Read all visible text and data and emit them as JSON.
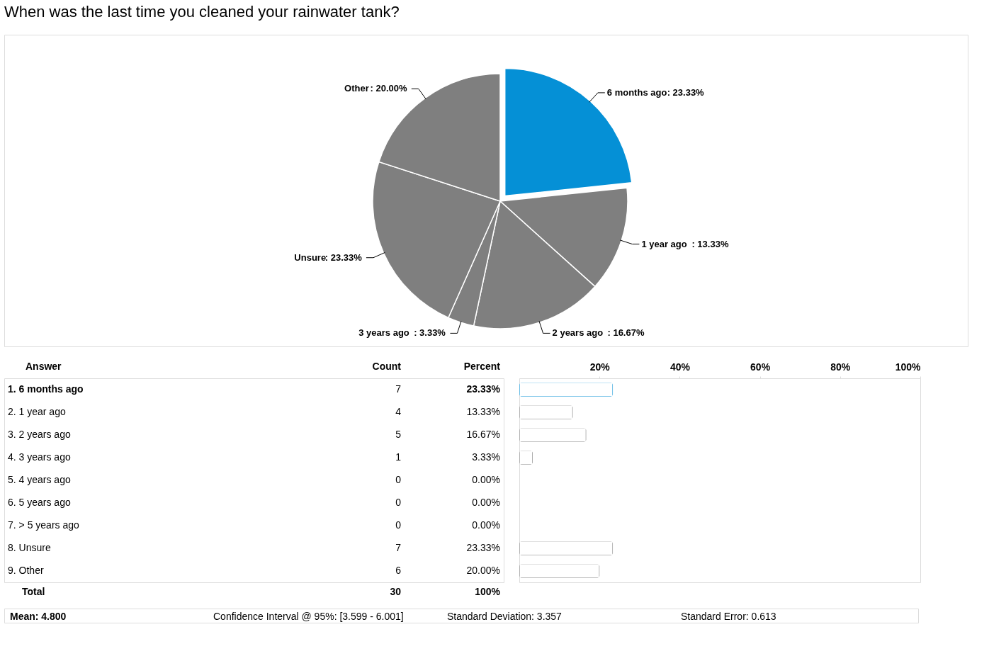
{
  "chart_data": [
    {
      "type": "pie",
      "title": "When was the last time you cleaned your rainwater tank?",
      "categories": [
        "6 months ago",
        "1 year ago",
        "2 years ago",
        "3 years ago",
        "Unsure",
        "Other"
      ],
      "values": [
        23.33,
        13.33,
        16.67,
        3.33,
        23.33,
        20.0
      ],
      "colors": [
        "#0590d6",
        "#7f7f7f",
        "#7f7f7f",
        "#7f7f7f",
        "#7f7f7f",
        "#7f7f7f"
      ],
      "value_labels": [
        ": 23.33%",
        ": 13.33%",
        ": 16.67%",
        ": 3.33%",
        ": 23.33%",
        ": 20.00%"
      ],
      "legend": false
    },
    {
      "type": "bar",
      "orientation": "horizontal",
      "categories": [
        "1.  6 months ago",
        "2.  1 year ago",
        "3.  2 years ago",
        "4.  3 years ago",
        "5.  4 years ago",
        "6.  5 years ago",
        "7.  > 5 years ago",
        "8.  Unsure",
        "9.  Other"
      ],
      "values": [
        23.33,
        13.33,
        16.67,
        3.33,
        0,
        0,
        0,
        23.33,
        20.0
      ],
      "colors": [
        "#0590d6",
        "#7f7f7f",
        "#7f7f7f",
        "#7f7f7f",
        "#7f7f7f",
        "#7f7f7f",
        "#7f7f7f",
        "#7f7f7f",
        "#7f7f7f"
      ],
      "value_labels": [
        "23.33%",
        "13.33%",
        "16.67%",
        "3.33%",
        "0.00%",
        "0.00%",
        "0.00%",
        "23.33%",
        "20.00%"
      ],
      "x2lim": [
        0,
        100
      ],
      "x2ticks": [
        {
          "value": 20,
          "label": "20%"
        },
        {
          "value": 40,
          "label": "40%"
        },
        {
          "value": 60,
          "label": "60%"
        },
        {
          "value": 80,
          "label": "80%"
        },
        {
          "value": 100,
          "label": "100%"
        }
      ],
      "grid": false,
      "annotations": [
        "Answer",
        "Count",
        "Percent",
        "Total",
        "30",
        "100%",
        "Mean: 4.800",
        "Confidence Interval @ 95%: [3.599 - 6.001]",
        "Standard Deviation: 3.357",
        "Standard Error: 0.613",
        "7",
        "4",
        "5",
        "1",
        "0",
        "0",
        "0",
        "7",
        "6"
      ]
    }
  ]
}
